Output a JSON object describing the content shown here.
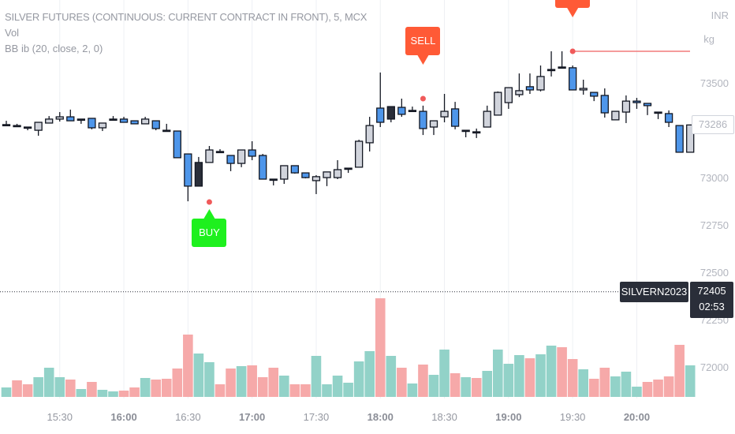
{
  "legend": {
    "title": "SILVER FUTURES (CONTINUOUS: CURRENT CONTRACT IN FRONT), 5, MCX",
    "volume": "Vol",
    "indicator": "BB ib (20, close, 2, 0)"
  },
  "price_axis": {
    "currency": "INR",
    "unit": "kg",
    "ticks": [
      "73500",
      "73000",
      "72750",
      "72500",
      "72250",
      "72000"
    ],
    "last_price": "73286",
    "symbol_label": "SILVERN2023",
    "symbol_price": "72405",
    "countdown": "02:53"
  },
  "time_axis": {
    "ticks": [
      {
        "label": "15:30",
        "bold": false
      },
      {
        "label": "16:00",
        "bold": true
      },
      {
        "label": "16:30",
        "bold": false
      },
      {
        "label": "17:00",
        "bold": true
      },
      {
        "label": "17:30",
        "bold": false
      },
      {
        "label": "18:00",
        "bold": true
      },
      {
        "label": "18:30",
        "bold": false
      },
      {
        "label": "19:00",
        "bold": true
      },
      {
        "label": "19:30",
        "bold": false
      },
      {
        "label": "20:00",
        "bold": true
      }
    ]
  },
  "colors": {
    "down": "#4e96ea",
    "up": "#d1d4dc",
    "dark": "#2a2e39",
    "border": "#131722",
    "vol_up": "#92d2c8",
    "vol_down": "#f6a9a9",
    "buy": "#1ef01e",
    "sell": "#ff5a36",
    "dot": "#f05a5a"
  },
  "signals": [
    {
      "label": "BUY",
      "type": "buy",
      "candle": 19
    },
    {
      "label": "SELL",
      "type": "sell",
      "candle": 39
    },
    {
      "label": "",
      "type": "sell",
      "candle": 53
    }
  ],
  "chart_data": {
    "type": "candlestick",
    "interval": "5",
    "first_time": "15:05",
    "candles": [
      [
        73288,
        73308,
        73283,
        73288,
        "dark"
      ],
      [
        73283,
        73292,
        73275,
        73279,
        "dark"
      ],
      [
        73275,
        73275,
        73258,
        73271,
        "dark"
      ],
      [
        73258,
        73300,
        73229,
        73300,
        "up"
      ],
      [
        73296,
        73333,
        73296,
        73317,
        "up"
      ],
      [
        73317,
        73354,
        73304,
        73329,
        "up"
      ],
      [
        73329,
        73367,
        73308,
        73308,
        "down"
      ],
      [
        73317,
        73317,
        73292,
        73317,
        "dark"
      ],
      [
        73321,
        73321,
        73263,
        73271,
        "down"
      ],
      [
        73271,
        73296,
        73254,
        73296,
        "up"
      ],
      [
        73317,
        73333,
        73317,
        73317,
        "dark"
      ],
      [
        73317,
        73329,
        73300,
        73300,
        "down"
      ],
      [
        73308,
        73308,
        73292,
        73292,
        "down"
      ],
      [
        73292,
        73329,
        73292,
        73317,
        "up"
      ],
      [
        73308,
        73308,
        73258,
        73267,
        "down"
      ],
      [
        73258,
        73292,
        73250,
        73258,
        "dark"
      ],
      [
        73254,
        73254,
        73113,
        73113,
        "down"
      ],
      [
        73133,
        73133,
        72883,
        72963,
        "down"
      ],
      [
        72963,
        73117,
        72963,
        73088,
        "dark"
      ],
      [
        73088,
        73175,
        73088,
        73154,
        "up"
      ],
      [
        73146,
        73158,
        73142,
        73146,
        "dark"
      ],
      [
        73125,
        73125,
        73042,
        73083,
        "down"
      ],
      [
        73083,
        73154,
        73063,
        73154,
        "up"
      ],
      [
        73154,
        73200,
        73100,
        73121,
        "down"
      ],
      [
        73125,
        73133,
        73000,
        73000,
        "down"
      ],
      [
        73000,
        73000,
        72967,
        73000,
        "dark"
      ],
      [
        73000,
        73071,
        72975,
        73071,
        "up"
      ],
      [
        73071,
        73071,
        73029,
        73033,
        "down"
      ],
      [
        73033,
        73033,
        73004,
        73008,
        "down"
      ],
      [
        72992,
        73021,
        72921,
        73013,
        "up"
      ],
      [
        73008,
        73038,
        72963,
        73038,
        "up"
      ],
      [
        73008,
        73100,
        73000,
        73050,
        "up"
      ],
      [
        73058,
        73058,
        73033,
        73058,
        "dark"
      ],
      [
        73063,
        73208,
        73063,
        73200,
        "up"
      ],
      [
        73192,
        73329,
        73146,
        73283,
        "up"
      ],
      [
        73375,
        73563,
        73275,
        73300,
        "down"
      ],
      [
        73317,
        73383,
        73300,
        73383,
        "dark"
      ],
      [
        73379,
        73425,
        73329,
        73342,
        "down"
      ],
      [
        73363,
        73383,
        73358,
        73363,
        "dark"
      ],
      [
        73358,
        73388,
        73233,
        73267,
        "down"
      ],
      [
        73275,
        73308,
        73233,
        73308,
        "up"
      ],
      [
        73329,
        73450,
        73300,
        73358,
        "up"
      ],
      [
        73371,
        73408,
        73263,
        73279,
        "down"
      ],
      [
        73258,
        73258,
        73221,
        73258,
        "dark"
      ],
      [
        73250,
        73267,
        73217,
        73250,
        "dark"
      ],
      [
        73275,
        73388,
        73275,
        73358,
        "up"
      ],
      [
        73338,
        73463,
        73338,
        73458,
        "up"
      ],
      [
        73404,
        73483,
        73371,
        73483,
        "up"
      ],
      [
        73446,
        73558,
        73433,
        73467,
        "up"
      ],
      [
        73488,
        73558,
        73450,
        73471,
        "down"
      ],
      [
        73471,
        73600,
        73463,
        73542,
        "up"
      ],
      [
        73579,
        73675,
        73542,
        73579,
        "dark"
      ],
      [
        73592,
        73675,
        73592,
        73592,
        "dark"
      ],
      [
        73588,
        73600,
        73471,
        73471,
        "down"
      ],
      [
        73471,
        73525,
        73446,
        73479,
        "up"
      ],
      [
        73458,
        73458,
        73412,
        73438,
        "down"
      ],
      [
        73442,
        73479,
        73325,
        73350,
        "down"
      ],
      [
        73313,
        73358,
        73313,
        73358,
        "up"
      ],
      [
        73354,
        73442,
        73296,
        73412,
        "up"
      ],
      [
        73412,
        73429,
        73371,
        73404,
        "down"
      ],
      [
        73400,
        73400,
        73338,
        73388,
        "down"
      ],
      [
        73354,
        73354,
        73317,
        73354,
        "dark"
      ],
      [
        73346,
        73363,
        73275,
        73300,
        "down"
      ],
      [
        73283,
        73283,
        73142,
        73142,
        "down"
      ],
      [
        73142,
        73288,
        73142,
        73286,
        "up"
      ]
    ],
    "volume": [
      [
        12,
        "up"
      ],
      [
        21,
        "down"
      ],
      [
        16,
        "down"
      ],
      [
        25,
        "up"
      ],
      [
        37,
        "up"
      ],
      [
        25,
        "up"
      ],
      [
        22,
        "down"
      ],
      [
        10,
        "up"
      ],
      [
        19,
        "down"
      ],
      [
        9,
        "up"
      ],
      [
        7,
        "up"
      ],
      [
        8,
        "down"
      ],
      [
        12,
        "down"
      ],
      [
        24,
        "up"
      ],
      [
        22,
        "down"
      ],
      [
        23,
        "down"
      ],
      [
        36,
        "down"
      ],
      [
        79,
        "down"
      ],
      [
        55,
        "up"
      ],
      [
        44,
        "up"
      ],
      [
        16,
        "down"
      ],
      [
        36,
        "down"
      ],
      [
        39,
        "up"
      ],
      [
        40,
        "down"
      ],
      [
        25,
        "down"
      ],
      [
        37,
        "down"
      ],
      [
        27,
        "up"
      ],
      [
        16,
        "down"
      ],
      [
        16,
        "down"
      ],
      [
        52,
        "up"
      ],
      [
        16,
        "up"
      ],
      [
        27,
        "up"
      ],
      [
        18,
        "up"
      ],
      [
        45,
        "up"
      ],
      [
        58,
        "up"
      ],
      [
        125,
        "down"
      ],
      [
        52,
        "up"
      ],
      [
        37,
        "down"
      ],
      [
        17,
        "up"
      ],
      [
        41,
        "down"
      ],
      [
        28,
        "up"
      ],
      [
        60,
        "up"
      ],
      [
        30,
        "down"
      ],
      [
        25,
        "up"
      ],
      [
        24,
        "down"
      ],
      [
        33,
        "up"
      ],
      [
        60,
        "up"
      ],
      [
        42,
        "up"
      ],
      [
        53,
        "up"
      ],
      [
        49,
        "down"
      ],
      [
        54,
        "up"
      ],
      [
        65,
        "up"
      ],
      [
        63,
        "down"
      ],
      [
        48,
        "down"
      ],
      [
        35,
        "up"
      ],
      [
        23,
        "down"
      ],
      [
        37,
        "down"
      ],
      [
        26,
        "up"
      ],
      [
        32,
        "up"
      ],
      [
        13,
        "up"
      ],
      [
        19,
        "down"
      ],
      [
        22,
        "down"
      ],
      [
        26,
        "down"
      ],
      [
        66,
        "down"
      ],
      [
        40,
        "up"
      ]
    ],
    "signal_dot_prices": [
      72879,
      73425,
      73675
    ],
    "stop_line_price": 73675,
    "symbol_line_price": 72405,
    "price_ticks": [
      73500,
      73000,
      72750,
      72500,
      72250,
      72000
    ]
  }
}
